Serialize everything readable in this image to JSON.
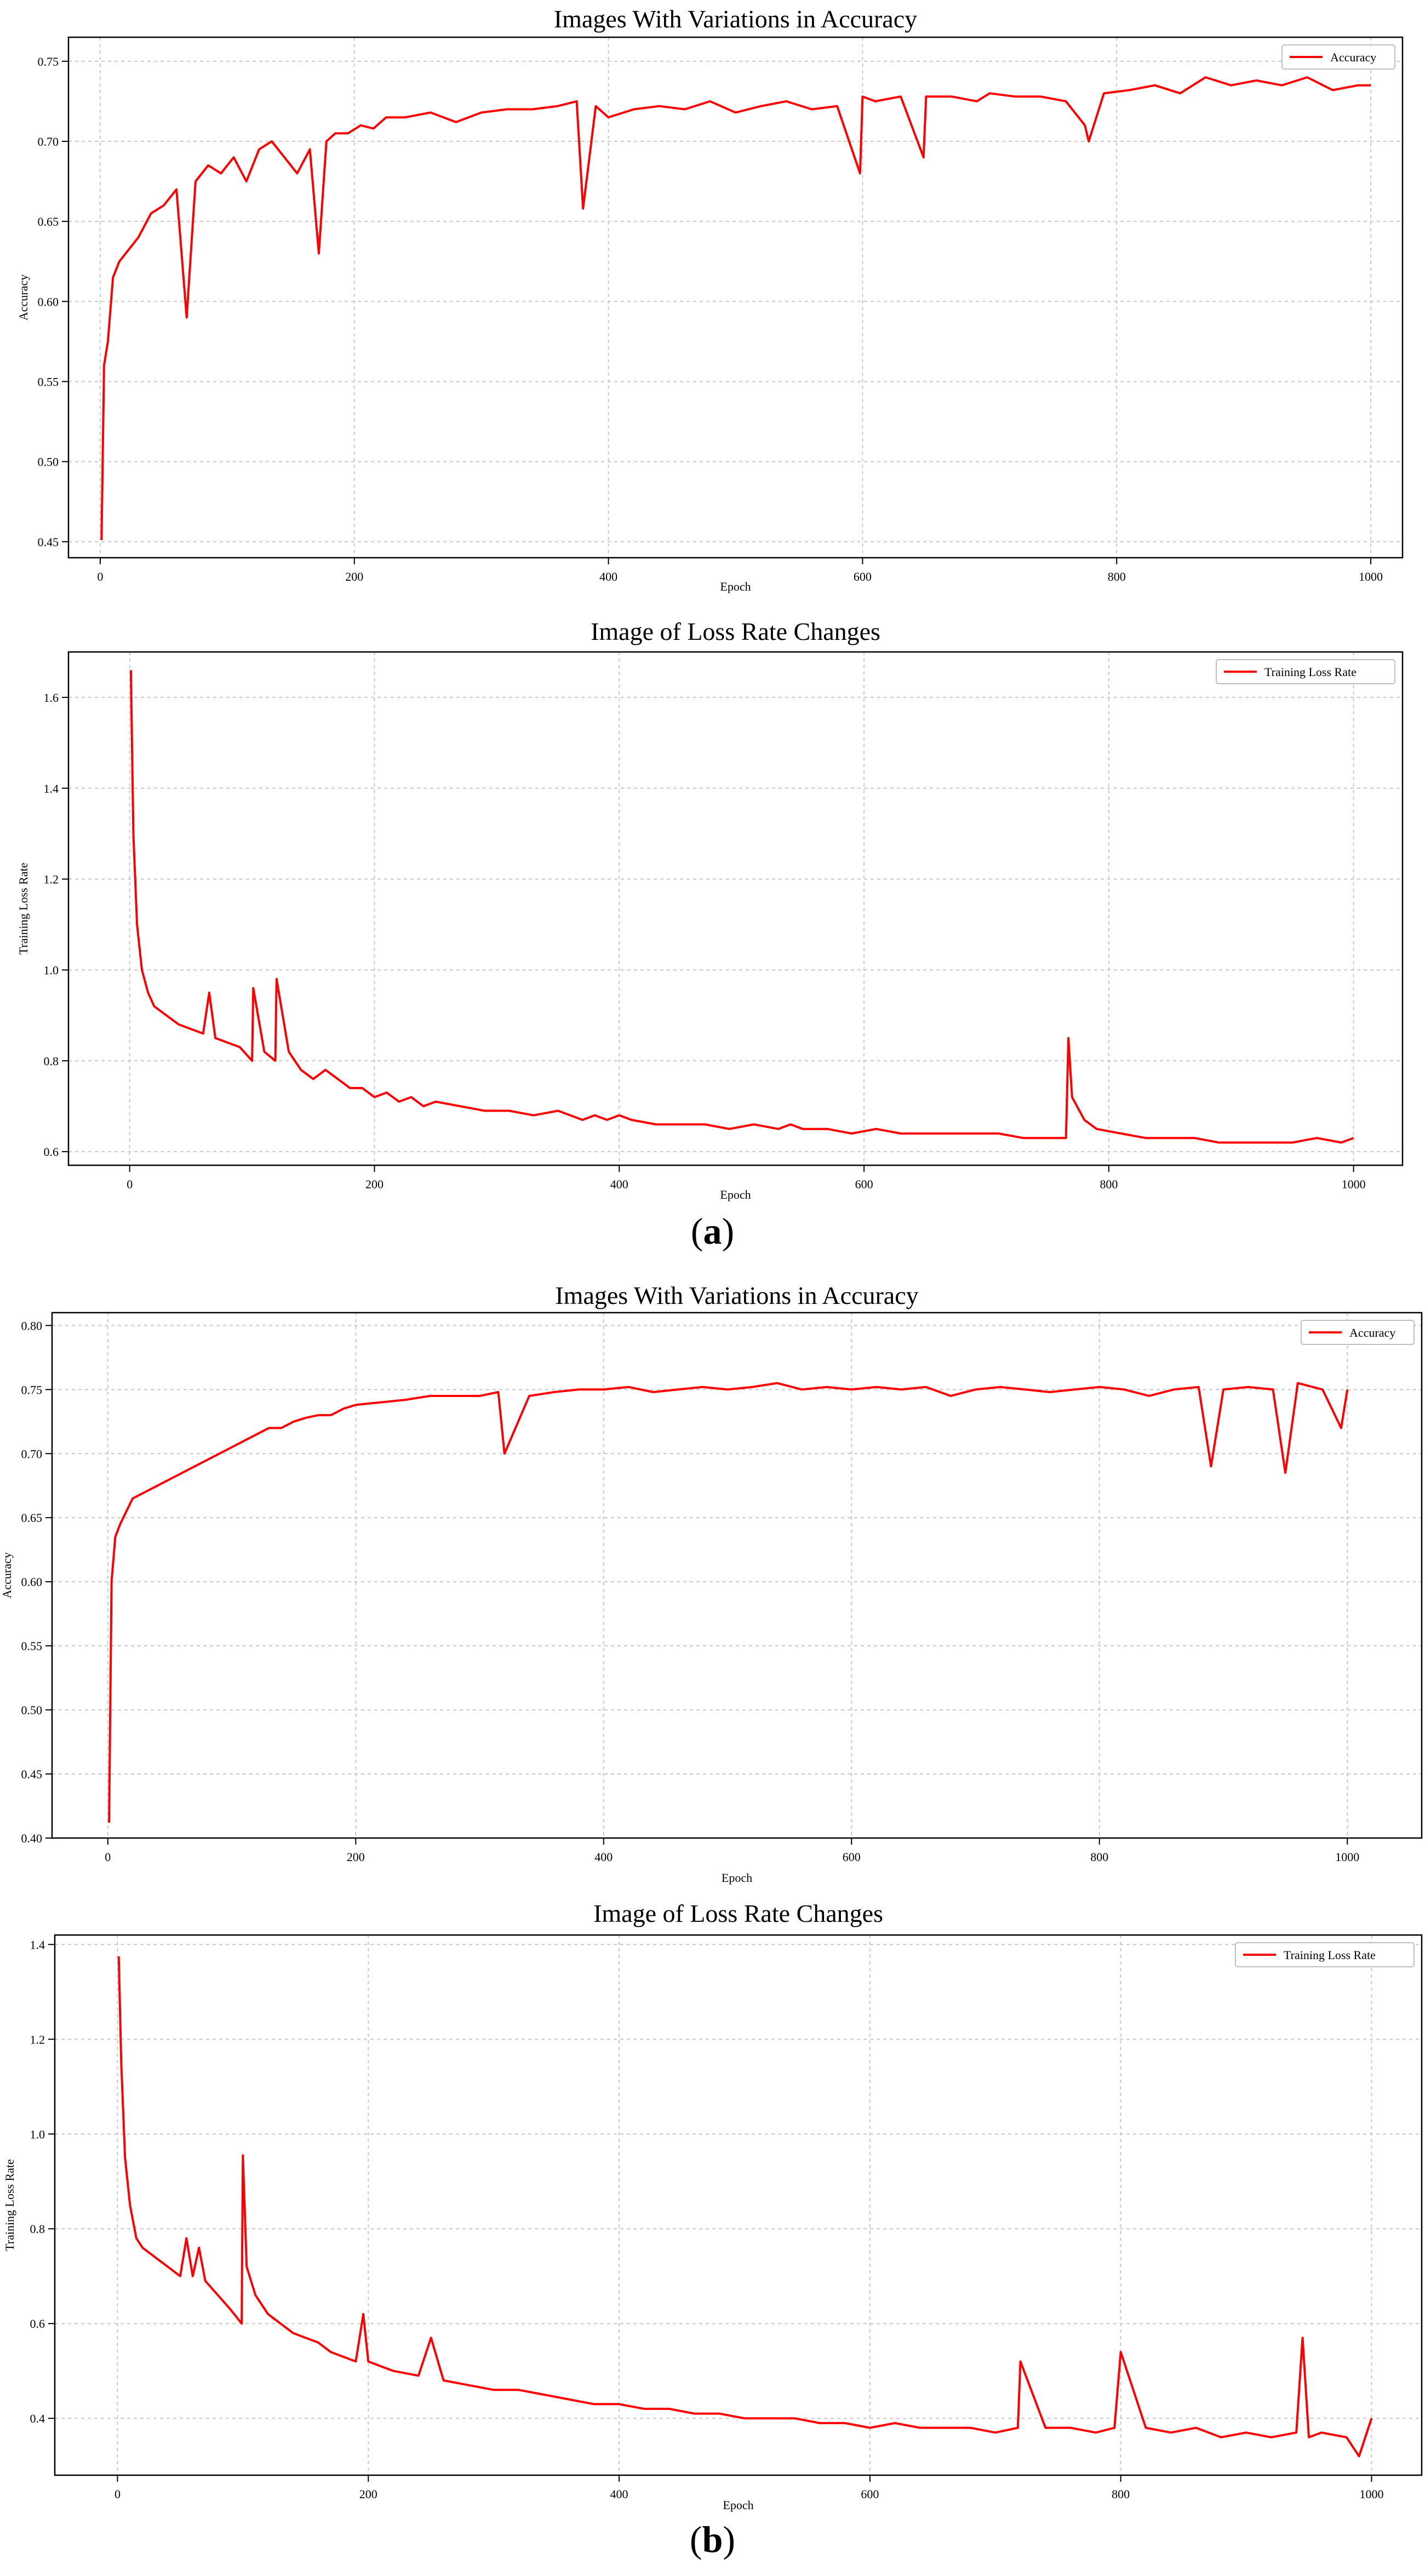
{
  "panels": [
    {
      "label_open": "(",
      "label_letter": "a",
      "label_close": ")"
    },
    {
      "label_open": "(",
      "label_letter": "b",
      "label_close": ")"
    }
  ],
  "line_color": "#ff0000",
  "grid_color": "#c8c8c8",
  "chart_data": [
    {
      "type": "line",
      "title": "Images With Variations in Accuracy",
      "xlabel": "Epoch",
      "ylabel": "Accuracy",
      "legend": "top-right",
      "grid": true,
      "xlim": [
        -25,
        1025
      ],
      "ylim": [
        0.44,
        0.765
      ],
      "xticks": [
        "0",
        "200",
        "400",
        "600",
        "800",
        "1000"
      ],
      "yticks": [
        "0.45",
        "0.50",
        "0.55",
        "0.60",
        "0.65",
        "0.70",
        "0.75"
      ],
      "series": [
        {
          "name": "Accuracy",
          "x": [
            1,
            3,
            6,
            10,
            15,
            20,
            30,
            40,
            50,
            60,
            68,
            75,
            85,
            95,
            105,
            115,
            125,
            135,
            145,
            155,
            165,
            172,
            178,
            185,
            195,
            205,
            215,
            225,
            240,
            260,
            280,
            300,
            320,
            340,
            360,
            375,
            380,
            390,
            400,
            420,
            440,
            460,
            480,
            500,
            520,
            540,
            560,
            580,
            598,
            600,
            610,
            630,
            648,
            650,
            670,
            690,
            700,
            720,
            740,
            760,
            775,
            778,
            790,
            810,
            830,
            850,
            870,
            890,
            910,
            930,
            950,
            970,
            990,
            1000
          ],
          "values": [
            0.451,
            0.56,
            0.575,
            0.615,
            0.625,
            0.63,
            0.64,
            0.655,
            0.66,
            0.67,
            0.59,
            0.675,
            0.685,
            0.68,
            0.69,
            0.675,
            0.695,
            0.7,
            0.69,
            0.68,
            0.695,
            0.63,
            0.7,
            0.705,
            0.705,
            0.71,
            0.708,
            0.715,
            0.715,
            0.718,
            0.712,
            0.718,
            0.72,
            0.72,
            0.722,
            0.725,
            0.658,
            0.722,
            0.715,
            0.72,
            0.722,
            0.72,
            0.725,
            0.718,
            0.722,
            0.725,
            0.72,
            0.722,
            0.68,
            0.728,
            0.725,
            0.728,
            0.69,
            0.728,
            0.728,
            0.725,
            0.73,
            0.728,
            0.728,
            0.725,
            0.71,
            0.7,
            0.73,
            0.732,
            0.735,
            0.73,
            0.74,
            0.735,
            0.738,
            0.735,
            0.74,
            0.732,
            0.735,
            0.735
          ]
        }
      ]
    },
    {
      "type": "line",
      "title": "Image of Loss Rate Changes",
      "xlabel": "Epoch",
      "ylabel": "Training Loss Rate",
      "legend": "top-right",
      "grid": true,
      "xlim": [
        -50,
        1040
      ],
      "ylim": [
        0.57,
        1.7
      ],
      "xticks": [
        "0",
        "200",
        "400",
        "600",
        "800",
        "1000"
      ],
      "yticks": [
        "0.6",
        "0.8",
        "1.0",
        "1.2",
        "1.4",
        "1.6"
      ],
      "series": [
        {
          "name": "Training Loss Rate",
          "x": [
            1,
            3,
            6,
            10,
            15,
            20,
            30,
            40,
            50,
            60,
            65,
            70,
            80,
            90,
            100,
            101,
            110,
            119,
            120,
            130,
            140,
            150,
            160,
            170,
            180,
            190,
            200,
            210,
            220,
            230,
            240,
            250,
            270,
            290,
            310,
            330,
            350,
            370,
            380,
            390,
            400,
            410,
            430,
            450,
            470,
            490,
            510,
            530,
            540,
            550,
            570,
            590,
            610,
            630,
            650,
            670,
            690,
            710,
            730,
            750,
            765,
            767,
            770,
            780,
            790,
            810,
            830,
            850,
            870,
            890,
            910,
            930,
            950,
            970,
            990,
            1000
          ],
          "values": [
            1.66,
            1.3,
            1.1,
            1.0,
            0.95,
            0.92,
            0.9,
            0.88,
            0.87,
            0.86,
            0.95,
            0.85,
            0.84,
            0.83,
            0.8,
            0.96,
            0.82,
            0.8,
            0.98,
            0.82,
            0.78,
            0.76,
            0.78,
            0.76,
            0.74,
            0.74,
            0.72,
            0.73,
            0.71,
            0.72,
            0.7,
            0.71,
            0.7,
            0.69,
            0.69,
            0.68,
            0.69,
            0.67,
            0.68,
            0.67,
            0.68,
            0.67,
            0.66,
            0.66,
            0.66,
            0.65,
            0.66,
            0.65,
            0.66,
            0.65,
            0.65,
            0.64,
            0.65,
            0.64,
            0.64,
            0.64,
            0.64,
            0.64,
            0.63,
            0.63,
            0.63,
            0.85,
            0.72,
            0.67,
            0.65,
            0.64,
            0.63,
            0.63,
            0.63,
            0.62,
            0.62,
            0.62,
            0.62,
            0.63,
            0.62,
            0.63
          ]
        }
      ]
    },
    {
      "type": "line",
      "title": "Images With Variations in Accuracy",
      "xlabel": "Epoch",
      "ylabel": "Accuracy",
      "legend": "top-right",
      "grid": true,
      "xlim": [
        -45,
        1060
      ],
      "ylim": [
        0.4,
        0.81
      ],
      "xticks": [
        "0",
        "200",
        "400",
        "600",
        "800",
        "1000"
      ],
      "yticks": [
        "0.40",
        "0.45",
        "0.50",
        "0.55",
        "0.60",
        "0.65",
        "0.70",
        "0.75",
        "0.80"
      ],
      "series": [
        {
          "name": "Accuracy",
          "x": [
            1,
            3,
            6,
            10,
            15,
            20,
            30,
            40,
            50,
            60,
            70,
            80,
            90,
            100,
            110,
            120,
            130,
            140,
            150,
            160,
            170,
            180,
            190,
            200,
            220,
            240,
            260,
            280,
            300,
            315,
            320,
            340,
            360,
            380,
            400,
            420,
            440,
            460,
            480,
            500,
            520,
            540,
            560,
            580,
            600,
            620,
            640,
            660,
            680,
            700,
            720,
            740,
            760,
            780,
            800,
            820,
            840,
            860,
            880,
            890,
            900,
            920,
            940,
            950,
            960,
            980,
            995,
            1000
          ],
          "values": [
            0.412,
            0.6,
            0.635,
            0.645,
            0.655,
            0.665,
            0.67,
            0.675,
            0.68,
            0.685,
            0.69,
            0.695,
            0.7,
            0.705,
            0.71,
            0.715,
            0.72,
            0.72,
            0.725,
            0.728,
            0.73,
            0.73,
            0.735,
            0.738,
            0.74,
            0.742,
            0.745,
            0.745,
            0.745,
            0.748,
            0.7,
            0.745,
            0.748,
            0.75,
            0.75,
            0.752,
            0.748,
            0.75,
            0.752,
            0.75,
            0.752,
            0.755,
            0.75,
            0.752,
            0.75,
            0.752,
            0.75,
            0.752,
            0.745,
            0.75,
            0.752,
            0.75,
            0.748,
            0.75,
            0.752,
            0.75,
            0.745,
            0.75,
            0.752,
            0.69,
            0.75,
            0.752,
            0.75,
            0.685,
            0.755,
            0.75,
            0.72,
            0.75
          ]
        }
      ]
    },
    {
      "type": "line",
      "title": "Image of Loss Rate Changes",
      "xlabel": "Epoch",
      "ylabel": "Training Loss Rate",
      "legend": "top-right",
      "grid": true,
      "xlim": [
        -50,
        1040
      ],
      "ylim": [
        0.28,
        1.42
      ],
      "xticks": [
        "0",
        "200",
        "400",
        "600",
        "800",
        "1000"
      ],
      "yticks": [
        "0.4",
        "0.6",
        "0.8",
        "1.0",
        "1.2",
        "1.4"
      ],
      "series": [
        {
          "name": "Training Loss Rate",
          "x": [
            1,
            3,
            6,
            10,
            15,
            20,
            30,
            40,
            50,
            55,
            60,
            65,
            70,
            80,
            90,
            99,
            100,
            103,
            110,
            120,
            130,
            140,
            150,
            160,
            170,
            180,
            190,
            196,
            200,
            210,
            220,
            240,
            250,
            260,
            280,
            300,
            320,
            340,
            360,
            380,
            400,
            420,
            440,
            460,
            480,
            500,
            520,
            540,
            560,
            580,
            600,
            620,
            640,
            660,
            680,
            700,
            718,
            720,
            740,
            760,
            780,
            795,
            800,
            820,
            840,
            860,
            880,
            900,
            920,
            940,
            945,
            950,
            960,
            980,
            990,
            1000
          ],
          "values": [
            1.375,
            1.15,
            0.95,
            0.85,
            0.78,
            0.76,
            0.74,
            0.72,
            0.7,
            0.78,
            0.7,
            0.76,
            0.69,
            0.66,
            0.63,
            0.6,
            0.955,
            0.72,
            0.66,
            0.62,
            0.6,
            0.58,
            0.57,
            0.56,
            0.54,
            0.53,
            0.52,
            0.62,
            0.52,
            0.51,
            0.5,
            0.49,
            0.57,
            0.48,
            0.47,
            0.46,
            0.46,
            0.45,
            0.44,
            0.43,
            0.43,
            0.42,
            0.42,
            0.41,
            0.41,
            0.4,
            0.4,
            0.4,
            0.39,
            0.39,
            0.38,
            0.39,
            0.38,
            0.38,
            0.38,
            0.37,
            0.38,
            0.52,
            0.38,
            0.38,
            0.37,
            0.38,
            0.54,
            0.38,
            0.37,
            0.38,
            0.36,
            0.37,
            0.36,
            0.37,
            0.57,
            0.36,
            0.37,
            0.36,
            0.32,
            0.4
          ]
        }
      ]
    }
  ]
}
